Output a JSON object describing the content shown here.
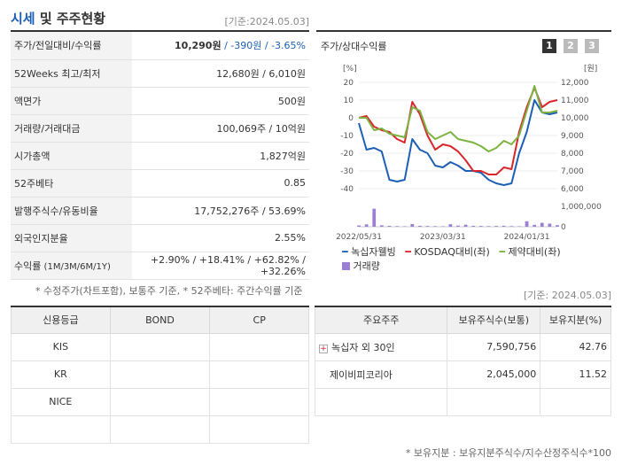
{
  "header": {
    "title_part1": "시세",
    "title_part2": " 및 주주현황",
    "as_of": "[기준:2024.05.03]"
  },
  "quote_table": {
    "rows": [
      {
        "label": "주가/전일대비/수익률",
        "price": "10,290원",
        "change": " / -390원 / -3.65%"
      },
      {
        "label": "52Weeks 최고/최저",
        "value": "12,680원 / 6,010원"
      },
      {
        "label": "액면가",
        "value": "500원"
      },
      {
        "label": "거래량/거래대금",
        "value": "100,069주 / 10억원"
      },
      {
        "label": "시가총액",
        "value": "1,827억원"
      },
      {
        "label": "52주베타",
        "value": "0.85"
      },
      {
        "label": "발행주식수/유동비율",
        "value": "17,752,276주 / 53.69%"
      },
      {
        "label": "외국인지분율",
        "value": "2.55%"
      },
      {
        "label": "수익률",
        "label_sub": " (1M/3M/6M/1Y)",
        "value": "+2.90% / +18.41% / +62.82% / +32.26%"
      }
    ],
    "note": "* 수정주가(차트포함), 보통주 기준, * 52주베타: 주간수익률 기준"
  },
  "chart_panel": {
    "title": "주가/상대수익률",
    "tabs": [
      "1",
      "2",
      "3"
    ],
    "active_tab": "1",
    "left_unit": "[%]",
    "right_unit": "[원]",
    "legend": {
      "s1": "녹십자웰빙",
      "s2": "KOSDAQ대비(좌)",
      "s3": "제약대비(좌)",
      "s4": "거래량"
    }
  },
  "chart_data": {
    "type": "line",
    "x": [
      "2022/05/31",
      "",
      "",
      "",
      "",
      "",
      "",
      "",
      "",
      "",
      "",
      "2023/03/31",
      "",
      "",
      "",
      "",
      "",
      "",
      "",
      "",
      "",
      "",
      "2024/01/31",
      "",
      "",
      "",
      ""
    ],
    "x_ticks": [
      "2022/05/31",
      "2023/03/31",
      "2024/01/31"
    ],
    "left_axis": {
      "ticks": [
        "20",
        "10",
        "0",
        "-10",
        "-20",
        "-30",
        "-40"
      ],
      "range": [
        -40,
        20
      ]
    },
    "right_axis": {
      "ticks": [
        "12,000",
        "11,000",
        "10,000",
        "9,000",
        "8,000",
        "7,000",
        "6,000"
      ],
      "range": [
        6000,
        12000
      ]
    },
    "volume_axis": {
      "ticks": [
        "1,000,000",
        "0"
      ],
      "range": [
        0,
        1300000
      ]
    },
    "series": [
      {
        "name": "녹십자웰빙",
        "color": "#1c5fb5",
        "axis": "left",
        "values": [
          -3,
          -18,
          -17,
          -19,
          -35,
          -36,
          -35,
          -12,
          -18,
          -20,
          -27,
          -28,
          -25,
          -27,
          -30,
          -30,
          -31,
          -35,
          -37,
          -38,
          -37,
          -20,
          -8,
          10,
          3,
          2,
          3
        ]
      },
      {
        "name": "KOSDAQ대비(좌)",
        "color": "#d8262c",
        "axis": "left",
        "values": [
          0,
          1,
          -5,
          -7,
          -8,
          -12,
          -14,
          9,
          2,
          -10,
          -18,
          -15,
          -16,
          -19,
          -24,
          -30,
          -30,
          -32,
          -32,
          -28,
          -29,
          -8,
          6,
          17,
          6,
          9,
          10
        ]
      },
      {
        "name": "제약대비(좌)",
        "color": "#7cb342",
        "axis": "left",
        "values": [
          0,
          0,
          -7,
          -6,
          -9,
          -10,
          -11,
          6,
          4,
          -8,
          -12,
          -10,
          -8,
          -12,
          -13,
          -14,
          -16,
          -19,
          -17,
          -13,
          -15,
          -10,
          4,
          18,
          3,
          3,
          4
        ]
      },
      {
        "name": "거래량",
        "color": "#9b7fd4",
        "type": "bar",
        "values": [
          80000,
          150000,
          1150000,
          90000,
          60000,
          40000,
          30000,
          170000,
          60000,
          50000,
          40000,
          30000,
          160000,
          70000,
          130000,
          60000,
          50000,
          40000,
          50000,
          60000,
          40000,
          30000,
          350000,
          120000,
          250000,
          200000,
          100000
        ]
      }
    ]
  },
  "rating_table": {
    "headers": [
      "신용등급",
      "BOND",
      "CP"
    ],
    "rows": [
      [
        "KIS",
        "",
        ""
      ],
      [
        "KR",
        "",
        ""
      ],
      [
        "NICE",
        "",
        ""
      ],
      [
        "",
        "",
        ""
      ]
    ]
  },
  "holders_table": {
    "as_of": "[기준: 2024.05.03]",
    "headers": [
      "주요주주",
      "보유주식수(보통)",
      "보유지분(%)"
    ],
    "rows": [
      {
        "name": "녹십자 외 30인",
        "shares": "7,590,756",
        "pct": "42.76",
        "expandable": true
      },
      {
        "name": "제이비피코리아",
        "shares": "2,045,000",
        "pct": "11.52",
        "expandable": false
      },
      {
        "name": "",
        "shares": "",
        "pct": "",
        "expandable": false
      }
    ],
    "note": "* 보유지분 : 보유지분주식수/지수산정주식수*100"
  }
}
